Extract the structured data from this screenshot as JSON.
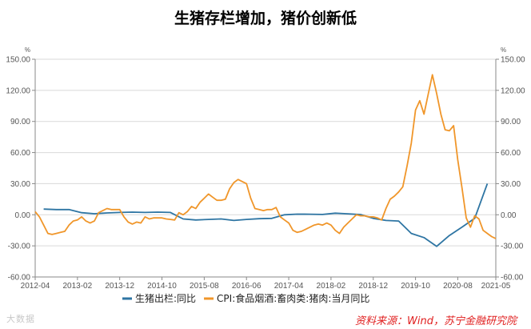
{
  "title": "生猪存栏增加，猪价创新低",
  "watermark": "大数据",
  "source": "资料来源：Wind，苏宁金融研究院",
  "chart_data": {
    "type": "line",
    "ylabel_left": "%",
    "ylabel_right": "%",
    "ylim": [
      -60,
      150
    ],
    "yticks": [
      "150.00",
      "120.00",
      "90.00",
      "60.00",
      "30.00",
      "0.00",
      "-30.00",
      "-60.00"
    ],
    "yticks_right": [
      "150.00",
      "120.00",
      "90.00",
      "60.00",
      "30.00",
      "0.00",
      "-30.00",
      "-60.00"
    ],
    "xticks": [
      "2012-04",
      "2013-02",
      "2013-12",
      "2014-10",
      "2015-08",
      "2016-06",
      "2017-04",
      "2018-02",
      "2018-12",
      "2019-10",
      "2020-08",
      "2021-05"
    ],
    "grid": "horizontal",
    "legend_position": "bottom",
    "series": [
      {
        "name": "生猪出栏:同比",
        "color": "#2e75a3",
        "points": [
          [
            "2012-06",
            5.5
          ],
          [
            "2012-09",
            5
          ],
          [
            "2012-12",
            5
          ],
          [
            "2013-03",
            2
          ],
          [
            "2013-06",
            1
          ],
          [
            "2013-09",
            1.8
          ],
          [
            "2013-12",
            2.2
          ],
          [
            "2014-03",
            2.5
          ],
          [
            "2014-06",
            2.2
          ],
          [
            "2014-09",
            2.5
          ],
          [
            "2014-12",
            2.2
          ],
          [
            "2015-03",
            -4
          ],
          [
            "2015-06",
            -5
          ],
          [
            "2015-09",
            -4.5
          ],
          [
            "2015-12",
            -4
          ],
          [
            "2016-03",
            -5.5
          ],
          [
            "2016-06",
            -4.5
          ],
          [
            "2016-09",
            -3.8
          ],
          [
            "2016-12",
            -3.5
          ],
          [
            "2017-03",
            0
          ],
          [
            "2017-06",
            0.6
          ],
          [
            "2017-09",
            0.5
          ],
          [
            "2017-12",
            0.3
          ],
          [
            "2018-03",
            1.5
          ],
          [
            "2018-06",
            0.9
          ],
          [
            "2018-09",
            0.2
          ],
          [
            "2018-12",
            -3.5
          ],
          [
            "2019-03",
            -5.5
          ],
          [
            "2019-06",
            -6
          ],
          [
            "2019-09",
            -18
          ],
          [
            "2019-12",
            -22
          ],
          [
            "2020-03",
            -30.5
          ],
          [
            "2020-06",
            -20
          ],
          [
            "2020-09",
            -12
          ],
          [
            "2020-12",
            -3.5
          ],
          [
            "2021-03",
            30
          ]
        ]
      },
      {
        "name": "CPI:食品烟酒:畜肉类:猪肉:当月同比",
        "color": "#f0962a",
        "points": [
          [
            "2012-04",
            3
          ],
          [
            "2012-05",
            -2
          ],
          [
            "2012-06",
            -10
          ],
          [
            "2012-07",
            -18
          ],
          [
            "2012-08",
            -19
          ],
          [
            "2012-09",
            -18
          ],
          [
            "2012-10",
            -17
          ],
          [
            "2012-11",
            -16
          ],
          [
            "2012-12",
            -10
          ],
          [
            "2013-01",
            -6
          ],
          [
            "2013-02",
            -5
          ],
          [
            "2013-03",
            -2
          ],
          [
            "2013-04",
            -6
          ],
          [
            "2013-05",
            -8
          ],
          [
            "2013-06",
            -6
          ],
          [
            "2013-07",
            2
          ],
          [
            "2013-08",
            4
          ],
          [
            "2013-09",
            6
          ],
          [
            "2013-10",
            5
          ],
          [
            "2013-11",
            5
          ],
          [
            "2013-12",
            5
          ],
          [
            "2014-01",
            -2
          ],
          [
            "2014-02",
            -7
          ],
          [
            "2014-03",
            -9
          ],
          [
            "2014-04",
            -7
          ],
          [
            "2014-05",
            -8
          ],
          [
            "2014-06",
            -2
          ],
          [
            "2014-07",
            -4
          ],
          [
            "2014-08",
            -3
          ],
          [
            "2014-09",
            -3
          ],
          [
            "2014-10",
            -3
          ],
          [
            "2014-11",
            -4
          ],
          [
            "2014-12",
            -4.5
          ],
          [
            "2015-01",
            -5
          ],
          [
            "2015-02",
            2
          ],
          [
            "2015-03",
            0
          ],
          [
            "2015-04",
            3
          ],
          [
            "2015-05",
            8
          ],
          [
            "2015-06",
            6
          ],
          [
            "2015-07",
            12
          ],
          [
            "2015-08",
            16
          ],
          [
            "2015-09",
            20
          ],
          [
            "2015-10",
            17
          ],
          [
            "2015-11",
            14
          ],
          [
            "2015-12",
            14
          ],
          [
            "2016-01",
            15
          ],
          [
            "2016-02",
            25
          ],
          [
            "2016-03",
            31
          ],
          [
            "2016-04",
            34
          ],
          [
            "2016-05",
            32
          ],
          [
            "2016-06",
            30
          ],
          [
            "2016-07",
            16
          ],
          [
            "2016-08",
            6
          ],
          [
            "2016-09",
            5
          ],
          [
            "2016-10",
            4
          ],
          [
            "2016-11",
            5
          ],
          [
            "2016-12",
            5
          ],
          [
            "2017-01",
            7
          ],
          [
            "2017-02",
            -2
          ],
          [
            "2017-03",
            -5
          ],
          [
            "2017-04",
            -8
          ],
          [
            "2017-05",
            -15
          ],
          [
            "2017-06",
            -17
          ],
          [
            "2017-07",
            -16
          ],
          [
            "2017-08",
            -14
          ],
          [
            "2017-09",
            -12
          ],
          [
            "2017-10",
            -10
          ],
          [
            "2017-11",
            -9
          ],
          [
            "2017-12",
            -10
          ],
          [
            "2018-01",
            -8
          ],
          [
            "2018-02",
            -10
          ],
          [
            "2018-03",
            -15
          ],
          [
            "2018-04",
            -18
          ],
          [
            "2018-05",
            -12
          ],
          [
            "2018-06",
            -8
          ],
          [
            "2018-07",
            -4
          ],
          [
            "2018-08",
            0
          ],
          [
            "2018-09",
            -1
          ],
          [
            "2018-10",
            -1
          ],
          [
            "2018-11",
            -2
          ],
          [
            "2018-12",
            -2
          ],
          [
            "2019-01",
            -3
          ],
          [
            "2019-02",
            -5
          ],
          [
            "2019-03",
            6
          ],
          [
            "2019-04",
            15
          ],
          [
            "2019-05",
            18
          ],
          [
            "2019-06",
            22
          ],
          [
            "2019-07",
            27
          ],
          [
            "2019-08",
            47
          ],
          [
            "2019-09",
            69
          ],
          [
            "2019-10",
            101
          ],
          [
            "2019-11",
            110
          ],
          [
            "2019-12",
            97
          ],
          [
            "2020-01",
            116
          ],
          [
            "2020-02",
            135
          ],
          [
            "2020-03",
            117
          ],
          [
            "2020-04",
            97
          ],
          [
            "2020-05",
            82
          ],
          [
            "2020-06",
            81
          ],
          [
            "2020-07",
            86
          ],
          [
            "2020-08",
            53
          ],
          [
            "2020-09",
            26
          ],
          [
            "2020-10",
            -3
          ],
          [
            "2020-11",
            -12
          ],
          [
            "2020-12",
            -1
          ],
          [
            "2021-01",
            -4
          ],
          [
            "2021-02",
            -15
          ],
          [
            "2021-03",
            -18
          ],
          [
            "2021-04",
            -21
          ],
          [
            "2021-05",
            -23
          ]
        ]
      }
    ]
  }
}
